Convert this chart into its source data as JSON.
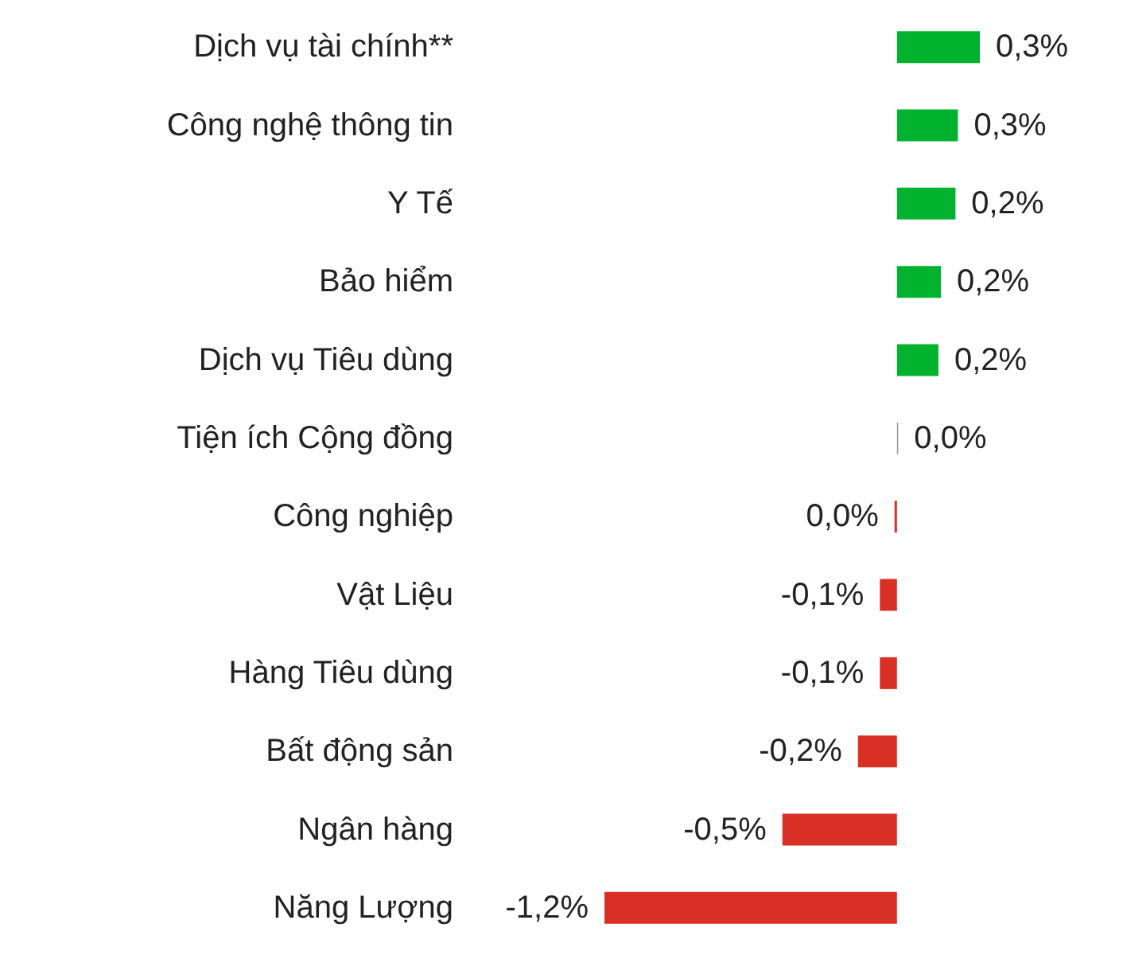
{
  "chart_data": {
    "type": "bar",
    "orientation": "horizontal",
    "categories": [
      "Dịch vụ tài chính**",
      "Công nghệ thông tin",
      "Y Tế",
      "Bảo hiểm",
      "Dịch vụ Tiêu dùng",
      "Tiện ích Cộng đồng",
      "Công nghiệp",
      "Vật Liệu",
      "Hàng Tiêu dùng",
      "Bất động sản",
      "Ngân hàng",
      "Năng Lượng"
    ],
    "values": [
      0.34,
      0.25,
      0.24,
      0.18,
      0.17,
      0.005,
      -0.01,
      -0.07,
      -0.07,
      -0.16,
      -0.47,
      -1.2
    ],
    "colors": [
      "#00b22d",
      "#00b22d",
      "#00b22d",
      "#00b22d",
      "#00b22d",
      "#999999",
      "#d93025",
      "#d93025",
      "#d93025",
      "#d93025",
      "#d93025",
      "#d93025"
    ],
    "value_labels": [
      "0,3%",
      "0,3%",
      "0,2%",
      "0,2%",
      "0,2%",
      "0,0%",
      "0,0%",
      "-0,1%",
      "-0,1%",
      "-0,2%",
      "-0,5%",
      "-1,2%"
    ]
  }
}
